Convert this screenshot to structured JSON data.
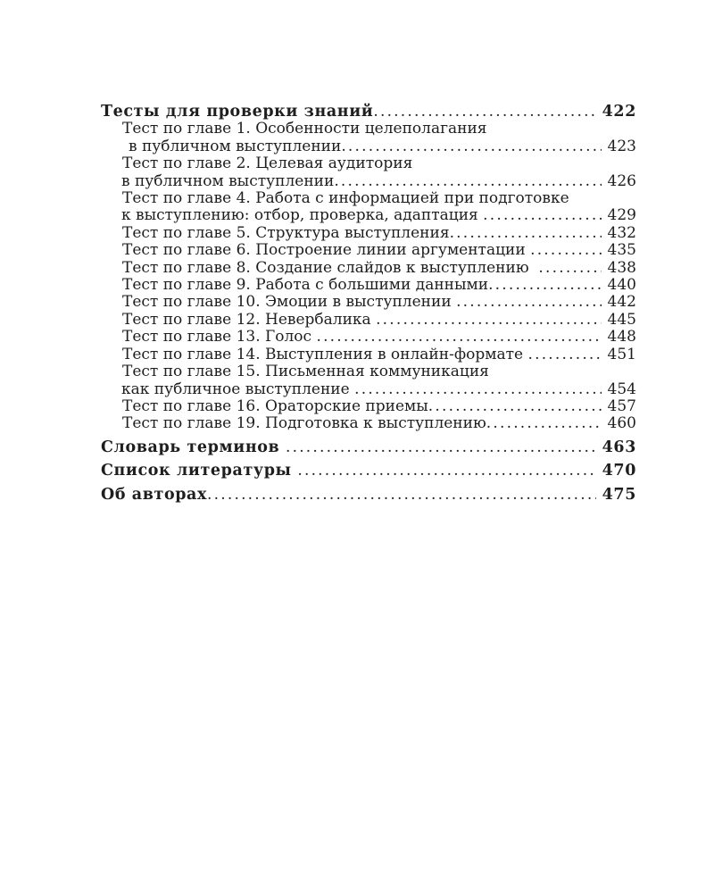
{
  "page": {
    "background": "#ffffff",
    "text_color": "#1e1e1e"
  },
  "toc": {
    "rows": [
      {
        "level": "section",
        "gap": false,
        "text": "Тесты для проверки знаний",
        "page": "422"
      },
      {
        "level": "item",
        "gap": false,
        "text": "Тест по главе 1. Особенности целеполагания",
        "page": ""
      },
      {
        "level": "cont1",
        "gap": false,
        "text": "в публичном выступлении",
        "page": "423"
      },
      {
        "level": "item",
        "gap": false,
        "text": "Тест по главе 2. Целевая аудитория",
        "page": ""
      },
      {
        "level": "cont",
        "gap": false,
        "text": "в публичном выступлении",
        "page": "426"
      },
      {
        "level": "item",
        "gap": false,
        "text": "Тест по главе 4. Работа с информацией при подготовке",
        "page": ""
      },
      {
        "level": "cont",
        "gap": false,
        "text": "к выступлению: отбор, проверка, адаптация ",
        "page": "429"
      },
      {
        "level": "item",
        "gap": false,
        "text": "Тест по главе 5. Структура выступления",
        "page": "432"
      },
      {
        "level": "item",
        "gap": false,
        "text": "Тест по главе 6. Построение линии аргументации ",
        "page": "435"
      },
      {
        "level": "item",
        "gap": false,
        "text": "Тест по главе 8. Создание слайдов к выступлению  ",
        "page": "438"
      },
      {
        "level": "item",
        "gap": false,
        "text": "Тест по главе 9. Работа с большими данными",
        "page": "440"
      },
      {
        "level": "item",
        "gap": false,
        "text": "Тест по главе 10. Эмоции в выступлении ",
        "page": "442"
      },
      {
        "level": "item",
        "gap": false,
        "text": "Тест по главе 12. Невербалика ",
        "page": "445"
      },
      {
        "level": "item",
        "gap": false,
        "text": "Тест по главе 13. Голос ",
        "page": "448"
      },
      {
        "level": "item",
        "gap": false,
        "text": "Тест по главе 14. Выступления в онлайн-формате ",
        "page": "451"
      },
      {
        "level": "item",
        "gap": false,
        "text": "Тест по главе 15. Письменная коммуникация",
        "page": ""
      },
      {
        "level": "cont",
        "gap": false,
        "text": "как публичное выступление ",
        "page": "454"
      },
      {
        "level": "item",
        "gap": false,
        "text": "Тест по главе 16. Ораторские приемы",
        "page": "457"
      },
      {
        "level": "item",
        "gap": false,
        "text": "Тест по главе 19. Подготовка к выступлению",
        "page": "460"
      },
      {
        "level": "section",
        "gap": true,
        "text": "Словарь терминов ",
        "page": "463"
      },
      {
        "level": "section",
        "gap": true,
        "text": "Список литературы ",
        "page": "470"
      },
      {
        "level": "section",
        "gap": true,
        "text": "Об авторах",
        "page": "475"
      }
    ]
  }
}
